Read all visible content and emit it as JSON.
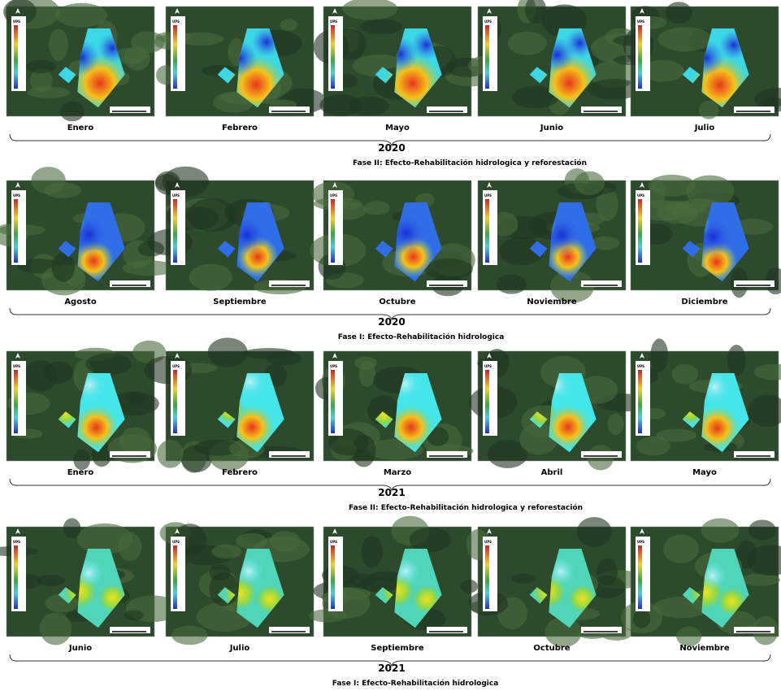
{
  "legend_title": "UPS",
  "rows": [
    {
      "panels": [
        "Enero",
        "Febrero",
        "Mayo",
        "Junio",
        "Julio"
      ],
      "year": "2020",
      "caption": "Fase II: Efecto-Rehabilitación hidrologica y reforestación"
    },
    {
      "panels": [
        "Agosto",
        "Septiembre",
        "Octubre",
        "Noviembre",
        "Diciembre"
      ],
      "year": "2020",
      "caption": "Fase I: Efecto-Rehabilitación hidrologica"
    },
    {
      "panels": [
        "Enero",
        "Febrero",
        "Marzo",
        "Abril",
        "Mayo"
      ],
      "year": "2021",
      "caption": "Fase II: Efecto-Rehabilitación hidrologica y reforestación"
    },
    {
      "panels": [
        "Junio",
        "Julio",
        "Septiembre",
        "Octubre",
        "Noviembre"
      ],
      "year": "2021",
      "caption": "Fase I: Efecto-Rehabilitación hidrologica"
    }
  ]
}
